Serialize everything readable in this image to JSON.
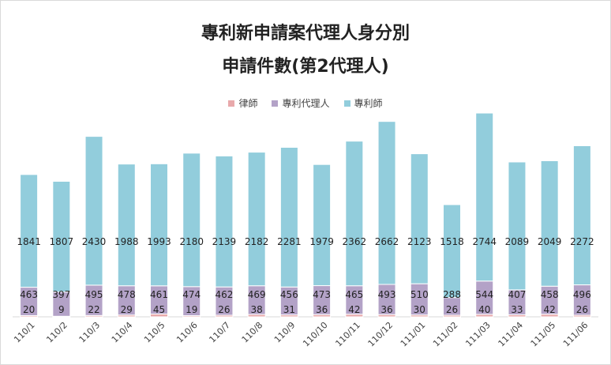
{
  "chart_data": {
    "type": "bar",
    "stacked": true,
    "title": "專利新申請案代理人身分別",
    "subtitle": "申請件數(第2代理人)",
    "legend_position": "top",
    "categories": [
      "110/1",
      "110/2",
      "110/3",
      "110/4",
      "110/5",
      "110/6",
      "110/7",
      "110/8",
      "110/9",
      "110/10",
      "110/11",
      "110/12",
      "111/01",
      "111/02",
      "111/03",
      "111/04",
      "111/05",
      "111/06"
    ],
    "series": [
      {
        "name": "律師",
        "color": "#e8a9ab",
        "values": [
          20,
          9,
          22,
          29,
          45,
          19,
          26,
          38,
          31,
          36,
          42,
          36,
          30,
          26,
          40,
          33,
          42,
          26
        ]
      },
      {
        "name": "專利代理人",
        "color": "#b3a2c7",
        "values": [
          463,
          397,
          495,
          478,
          461,
          474,
          462,
          469,
          456,
          473,
          465,
          493,
          510,
          288,
          544,
          407,
          458,
          496
        ]
      },
      {
        "name": "專利師",
        "color": "#92cddc",
        "values": [
          1841,
          1807,
          2430,
          1988,
          1993,
          2180,
          2139,
          2182,
          2281,
          1979,
          2362,
          2662,
          2123,
          1518,
          2744,
          2089,
          2049,
          2272
        ]
      }
    ],
    "ylim": [
      0,
      3700
    ],
    "grid": false
  }
}
